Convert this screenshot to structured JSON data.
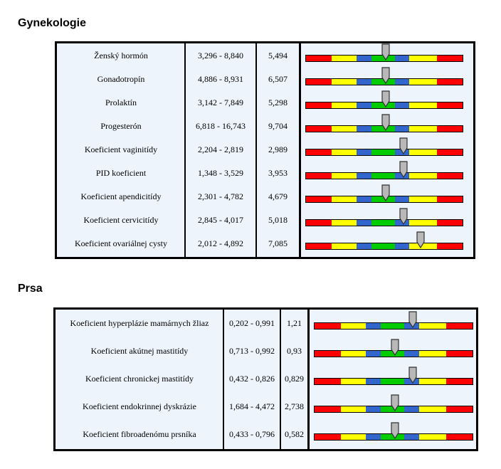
{
  "sections": [
    {
      "title": "Gynekologie",
      "rows": [
        {
          "name": "Ženský hormón",
          "range": "3,296 - 8,840",
          "value": "5,494",
          "position": 0.51
        },
        {
          "name": "Gonadotropín",
          "range": "4,886 - 8,931",
          "value": "6,507",
          "position": 0.51
        },
        {
          "name": "Prolaktín",
          "range": "3,142 - 7,849",
          "value": "5,298",
          "position": 0.51
        },
        {
          "name": "Progesterón",
          "range": "6,818 - 16,743",
          "value": "9,704",
          "position": 0.51
        },
        {
          "name": "Koeficient vaginitídy",
          "range": "2,204 - 2,819",
          "value": "2,989",
          "position": 0.62
        },
        {
          "name": "PID koeficient",
          "range": "1,348 - 3,529",
          "value": "3,953",
          "position": 0.62
        },
        {
          "name": "Koeficient apendicitídy",
          "range": "2,301 - 4,782",
          "value": "4,679",
          "position": 0.51
        },
        {
          "name": "Koeficient cervicitídy",
          "range": "2,845 - 4,017",
          "value": "5,018",
          "position": 0.62
        },
        {
          "name": "Koeficient ovariálnej cysty",
          "range": "2,012 - 4,892",
          "value": "7,085",
          "position": 0.73
        }
      ]
    },
    {
      "title": "Prsa",
      "rows": [
        {
          "name": "Koeficient hyperplázie mamárnych žliaz",
          "range": "0,202 - 0,991",
          "value": "1,21",
          "position": 0.62
        },
        {
          "name": "Koeficient akútnej mastitídy",
          "range": "0,713 - 0,992",
          "value": "0,93",
          "position": 0.51
        },
        {
          "name": "Koeficient chronickej mastitídy",
          "range": "0,432 - 0,826",
          "value": "0,829",
          "position": 0.62
        },
        {
          "name": "Koeficient endokrinnej dyskrázie",
          "range": "1,684 - 4,472",
          "value": "2,738",
          "position": 0.51
        },
        {
          "name": "Koeficient fibroadenómu prsníka",
          "range": "0,433 - 0,796",
          "value": "0,582",
          "position": 0.51
        }
      ]
    }
  ],
  "gauge_colors": [
    "#ff0000",
    "#ffff00",
    "#3366cc",
    "#00cc00",
    "#3366cc",
    "#ffff00",
    "#ff0000"
  ]
}
